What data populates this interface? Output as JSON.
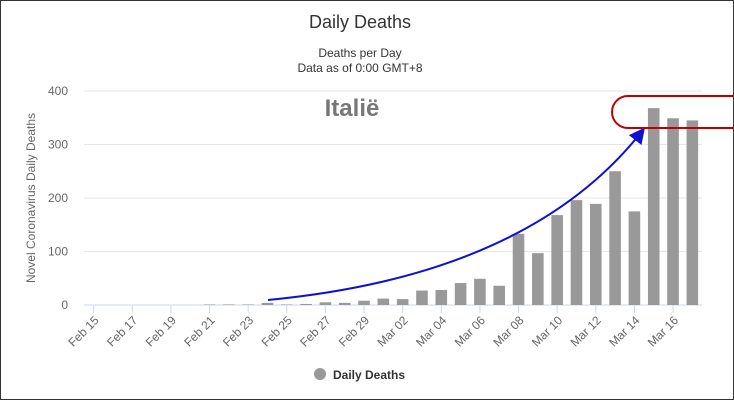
{
  "chart_data": {
    "type": "bar",
    "title": "Daily Deaths",
    "subtitle": [
      "Deaths per Day",
      "Data as of 0:00 GMT+8"
    ],
    "y_label": "Novel Coronavirus Daily Deaths",
    "annotation": "Italië",
    "categories": [
      "Feb 15",
      null,
      "Feb 17",
      null,
      "Feb 19",
      null,
      "Feb 21",
      null,
      "Feb 23",
      null,
      "Feb 25",
      null,
      "Feb 27",
      null,
      "Feb 29",
      null,
      "Mar 02",
      null,
      "Mar 04",
      null,
      "Mar 06",
      null,
      "Mar 08",
      null,
      "Mar 10",
      null,
      "Mar 12",
      null,
      "Mar 14",
      null,
      "Mar 16",
      null
    ],
    "series": [
      {
        "name": "Daily Deaths",
        "color": "#999999",
        "values": [
          0,
          0,
          0,
          0,
          0,
          0,
          1,
          1,
          1,
          4,
          1,
          2,
          5,
          4,
          8,
          12,
          11,
          27,
          28,
          41,
          49,
          36,
          133,
          97,
          168,
          196,
          189,
          250,
          175,
          368,
          349,
          345
        ]
      }
    ],
    "ylim": [
      0,
      400
    ],
    "yticks": [
      0,
      100,
      200,
      300,
      400
    ],
    "grid": true
  }
}
